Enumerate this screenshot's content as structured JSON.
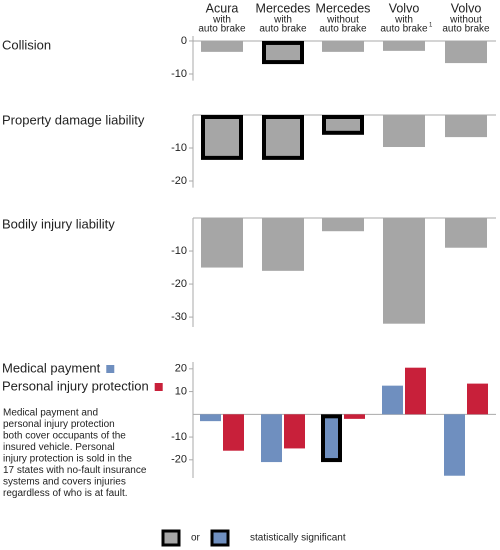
{
  "columns": [
    {
      "name": "Acura",
      "detail": [
        "with",
        "auto brake"
      ]
    },
    {
      "name": "Mercedes",
      "detail": [
        "with",
        "auto brake"
      ]
    },
    {
      "name": "Mercedes",
      "detail": [
        "without",
        "auto brake"
      ]
    },
    {
      "name": "Volvo",
      "detail": [
        "with",
        "auto brake"
      ],
      "note_ref": "1"
    },
    {
      "name": "Volvo",
      "detail": [
        "without",
        "auto brake"
      ]
    }
  ],
  "chart_data": [
    {
      "type": "bar",
      "title": "Collision",
      "color": "#a6a6a6",
      "values": [
        -3.3,
        -7,
        -3.3,
        -3,
        -6.7
      ],
      "significant": [
        false,
        true,
        false,
        false,
        false
      ],
      "ylim": [
        -12,
        1.5
      ],
      "yticks": [
        0,
        -10
      ]
    },
    {
      "type": "bar",
      "title": "Property damage liability",
      "color": "#a6a6a6",
      "values": [
        -13.6,
        -13.6,
        -6,
        -9.7,
        -6.7
      ],
      "significant": [
        true,
        true,
        true,
        false,
        false
      ],
      "ylim": [
        -22,
        0
      ],
      "yticks": [
        -10,
        -20
      ]
    },
    {
      "type": "bar",
      "title": "Bodily injury liability",
      "color": "#a6a6a6",
      "values": [
        -15,
        -16,
        -4,
        -32,
        -9
      ],
      "significant": [
        false,
        false,
        false,
        false,
        false
      ],
      "ylim": [
        -33,
        0
      ],
      "yticks": [
        -10,
        -20,
        -30
      ]
    },
    {
      "type": "grouped-bar",
      "series": [
        {
          "name": "Medical payment",
          "color": "#6f8fbf",
          "values": [
            -3,
            -21,
            -21,
            12.6,
            -27
          ],
          "significant": [
            false,
            false,
            true,
            false,
            false
          ]
        },
        {
          "name": "Personal injury protection",
          "color": "#c8203a",
          "values": [
            -16,
            -15,
            -2,
            20.5,
            13.5
          ],
          "significant": [
            false,
            false,
            false,
            false,
            false
          ]
        }
      ],
      "ylim": [
        -28,
        23
      ],
      "yticks": [
        20,
        10,
        -10,
        -20
      ]
    }
  ],
  "note": [
    "Medical payment and",
    "personal injury protection",
    "both cover occupants of the",
    "insured vehicle. Personal",
    "injury protection is sold in the",
    "17 states with no-fault insurance",
    "systems and covers injuries",
    "regardless of who is at fault."
  ],
  "legend": {
    "or": "or",
    "label": "statistically significant"
  }
}
